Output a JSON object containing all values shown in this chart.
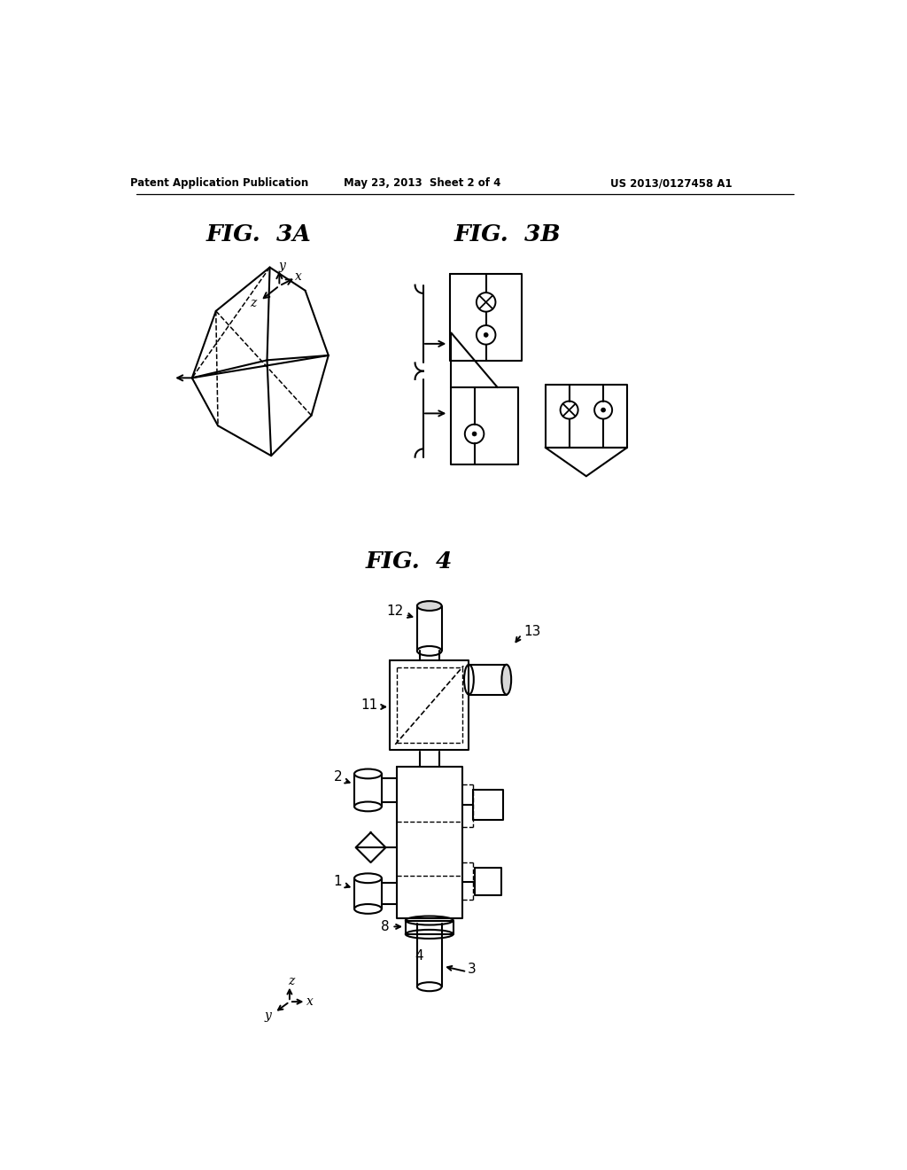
{
  "bg_color": "#ffffff",
  "header1": "Patent Application Publication",
  "header2": "May 23, 2013  Sheet 2 of 4",
  "header3": "US 2013/0127458 A1",
  "title_3a": "FIG.  3A",
  "title_3b": "FIG.  3B",
  "title_4": "FIG.  4"
}
